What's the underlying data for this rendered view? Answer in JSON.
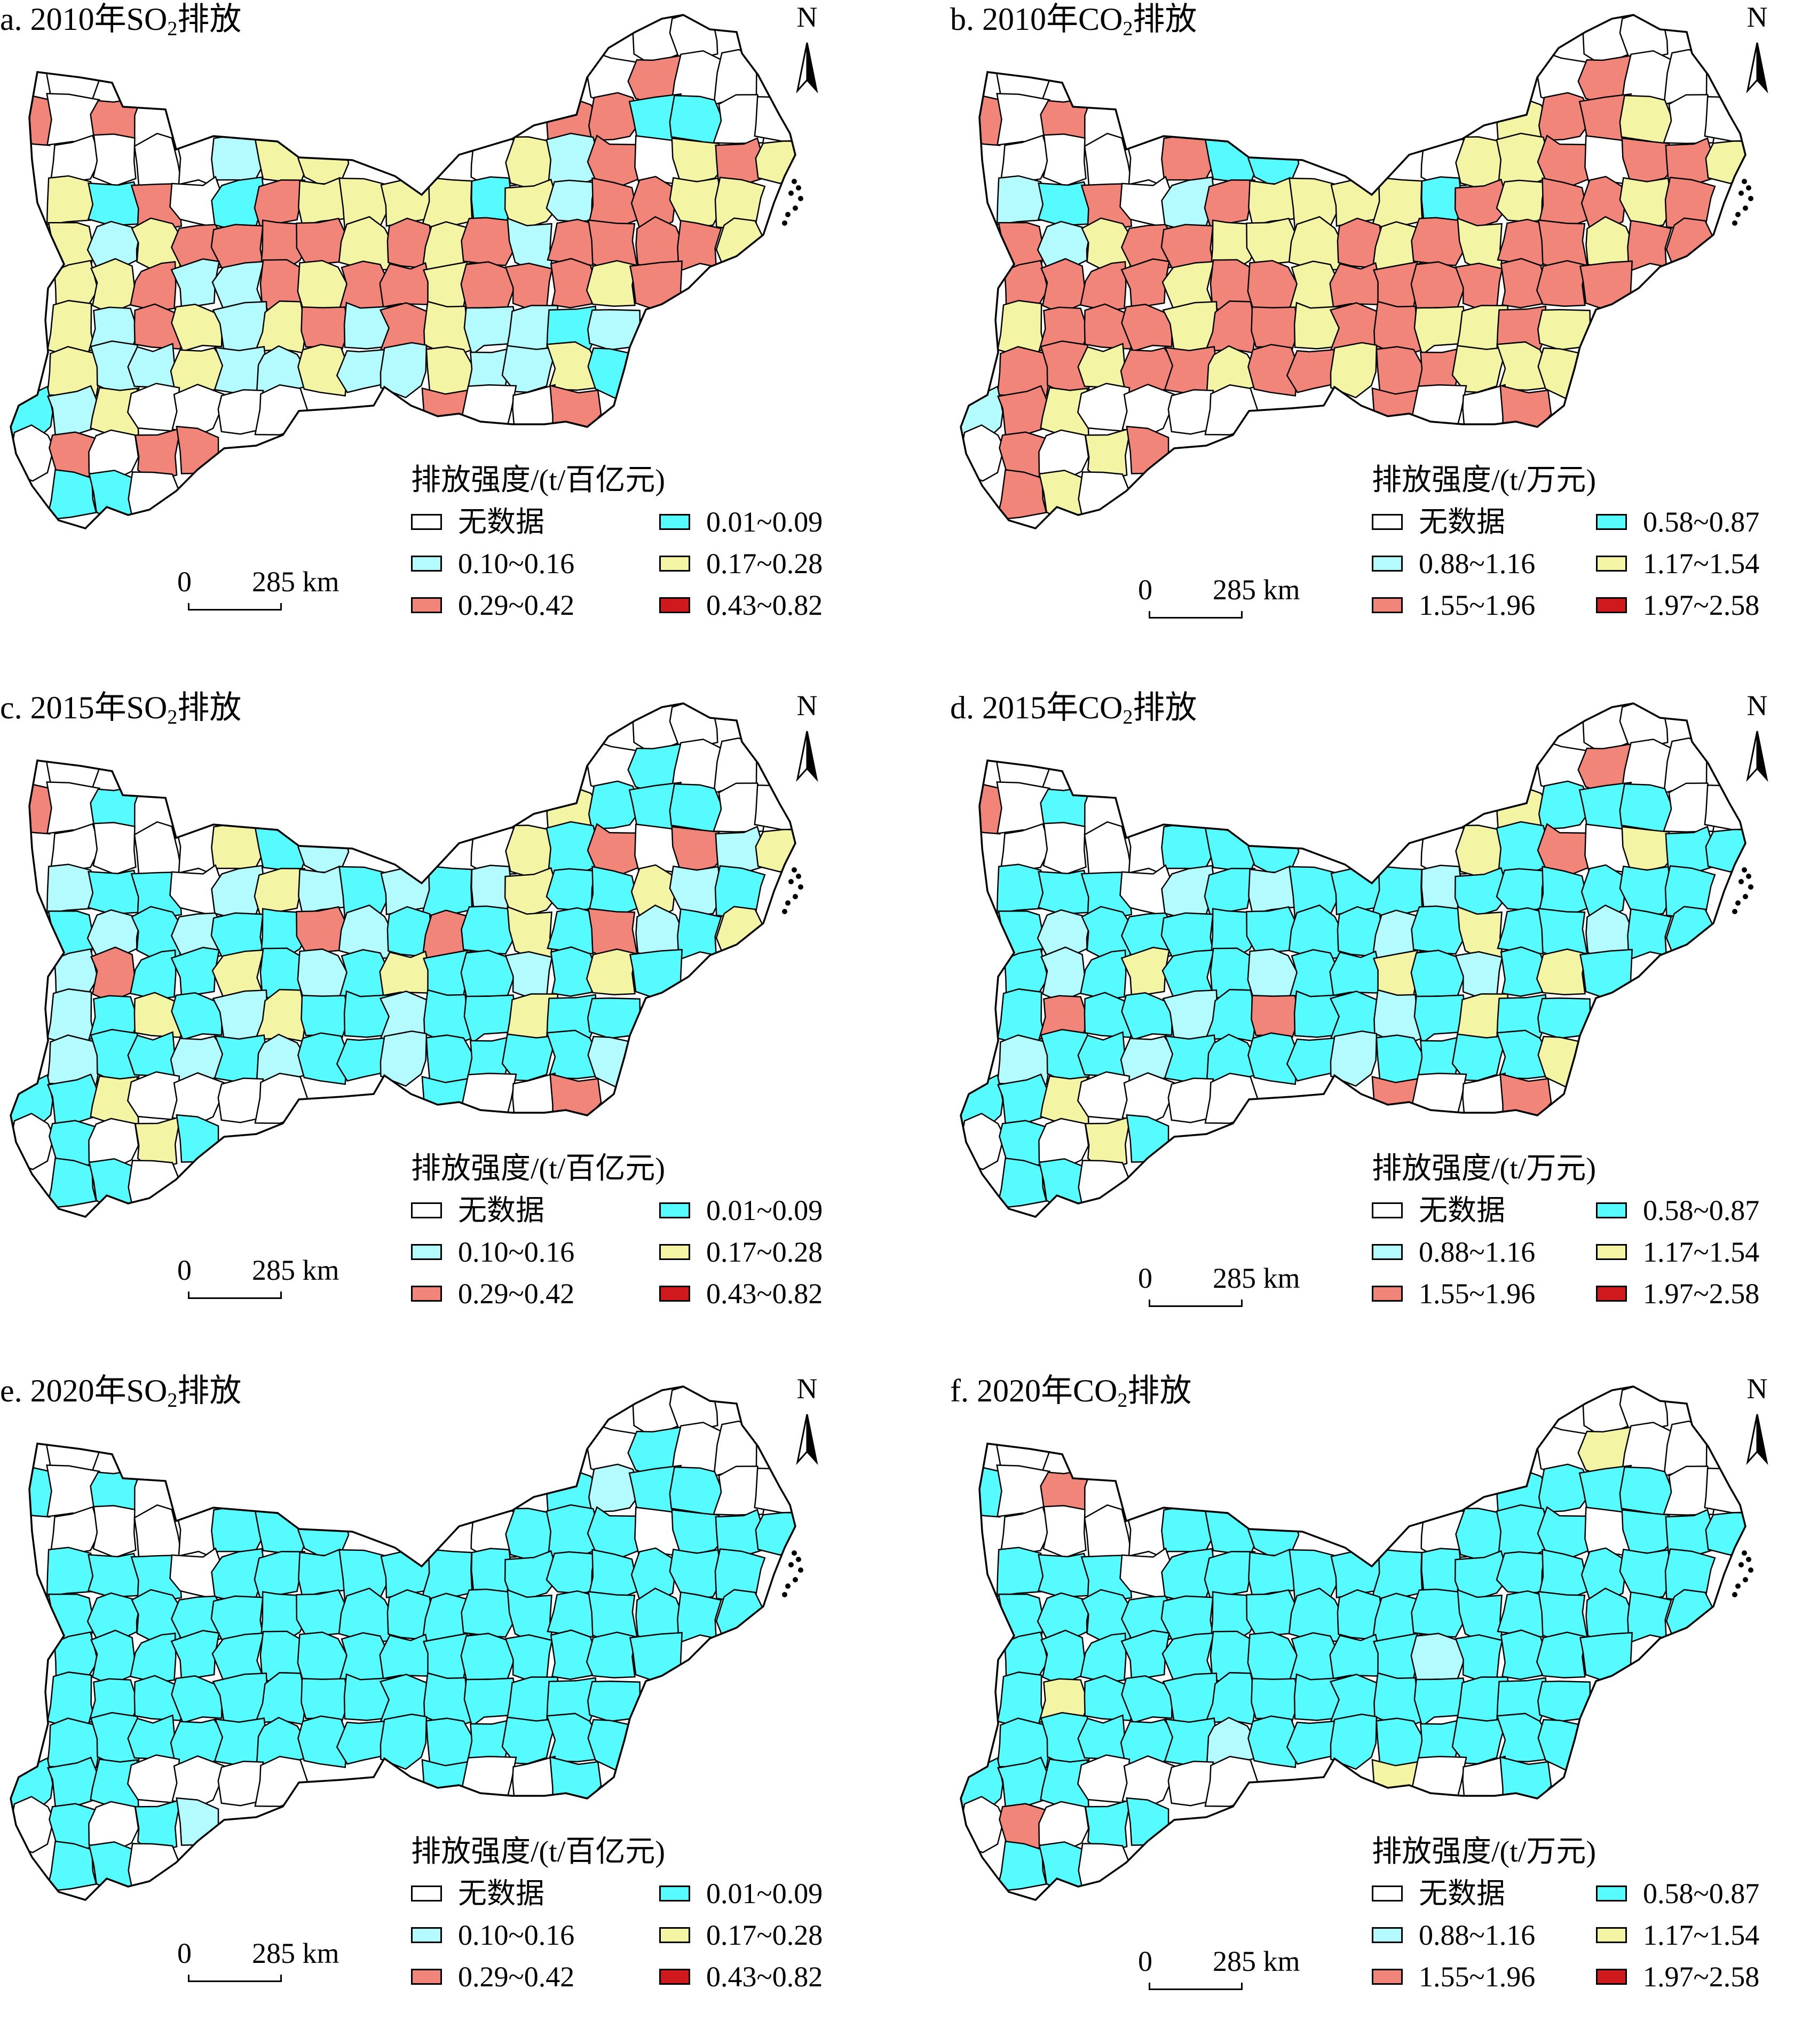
{
  "panels": [
    {
      "id": "a",
      "title_prefix": "a. 2010年",
      "gas": "SO",
      "sub": "2",
      "title_suffix": "排放",
      "type": "so2",
      "regions": [
        0,
        0,
        0,
        0,
        4,
        0,
        0,
        4,
        0,
        4,
        0,
        4,
        4,
        1,
        1,
        0,
        0,
        0,
        0,
        0,
        0,
        2,
        3,
        3,
        0,
        3,
        2,
        4,
        0,
        3,
        4,
        3,
        3,
        1,
        4,
        0,
        1,
        4,
        3,
        3,
        3,
        3,
        1,
        3,
        2,
        4,
        4,
        3,
        3,
        3,
        2,
        3,
        4,
        4,
        4,
        4,
        3,
        4,
        3,
        4,
        2,
        4,
        4,
        4,
        4,
        3,
        3,
        3,
        4,
        2,
        2,
        4,
        3,
        4,
        4,
        3,
        4,
        4,
        4,
        3,
        4,
        3,
        2,
        4,
        3,
        2,
        3,
        4,
        2,
        4,
        3,
        2,
        2,
        1,
        2,
        3,
        2,
        2,
        3,
        2,
        2,
        3,
        2,
        2,
        3,
        2,
        2,
        3,
        1,
        1,
        2,
        3
      ]
    },
    {
      "id": "b",
      "title_prefix": "b. 2010年",
      "gas": "CO",
      "sub": "2",
      "title_suffix": "排放",
      "type": "co2",
      "regions": [
        0,
        0,
        0,
        0,
        4,
        0,
        0,
        4,
        0,
        4,
        0,
        3,
        4,
        4,
        3,
        0,
        0,
        0,
        0,
        0,
        0,
        4,
        1,
        1,
        0,
        3,
        3,
        4,
        0,
        4,
        4,
        3,
        2,
        1,
        4,
        0,
        2,
        4,
        3,
        3,
        3,
        3,
        1,
        4,
        3,
        4,
        4,
        3,
        4,
        4,
        2,
        3,
        4,
        4,
        3,
        3,
        3,
        4,
        3,
        4,
        3,
        4,
        4,
        3,
        4,
        4,
        4,
        4,
        4,
        4,
        3,
        4,
        4,
        3,
        4,
        4,
        4,
        4,
        4,
        4,
        4,
        3,
        4,
        4,
        4,
        3,
        4,
        4,
        3,
        4,
        4,
        3,
        3,
        4,
        3,
        4,
        4,
        3,
        4,
        4,
        3,
        4,
        4,
        3,
        4,
        4,
        3,
        3,
        3,
        2,
        4,
        3
      ]
    },
    {
      "id": "c",
      "title_prefix": "c. 2015年",
      "gas": "SO",
      "sub": "2",
      "title_suffix": "排放",
      "type": "so2",
      "regions": [
        0,
        0,
        0,
        0,
        1,
        0,
        0,
        4,
        0,
        1,
        0,
        3,
        1,
        1,
        1,
        0,
        0,
        0,
        0,
        0,
        0,
        3,
        1,
        2,
        0,
        3,
        1,
        4,
        0,
        4,
        2,
        3,
        2,
        1,
        1,
        0,
        2,
        3,
        2,
        1,
        2,
        1,
        2,
        3,
        1,
        1,
        3,
        2,
        1,
        1,
        2,
        1,
        2,
        1,
        1,
        4,
        2,
        1,
        4,
        1,
        3,
        1,
        4,
        2,
        1,
        3,
        2,
        4,
        1,
        1,
        3,
        1,
        2,
        1,
        3,
        1,
        1,
        2,
        1,
        3,
        1,
        2,
        1,
        3,
        1,
        2,
        3,
        1,
        1,
        2,
        1,
        1,
        3,
        1,
        1,
        2,
        1,
        1,
        2,
        1,
        2,
        1,
        1,
        2,
        1,
        1,
        1,
        1,
        2,
        1,
        1,
        3
      ]
    },
    {
      "id": "d",
      "title_prefix": "d. 2015年",
      "gas": "CO",
      "sub": "2",
      "title_suffix": "排放",
      "type": "co2",
      "regions": [
        0,
        0,
        0,
        0,
        4,
        0,
        0,
        4,
        0,
        1,
        0,
        3,
        1,
        1,
        1,
        0,
        0,
        0,
        0,
        0,
        0,
        1,
        1,
        1,
        0,
        3,
        1,
        4,
        0,
        3,
        1,
        1,
        1,
        1,
        1,
        0,
        2,
        1,
        2,
        1,
        1,
        1,
        2,
        1,
        1,
        1,
        1,
        1,
        1,
        1,
        2,
        1,
        1,
        1,
        1,
        1,
        1,
        1,
        2,
        1,
        3,
        1,
        1,
        2,
        1,
        1,
        1,
        2,
        1,
        3,
        1,
        1,
        2,
        1,
        1,
        3,
        1,
        2,
        1,
        3,
        1,
        1,
        4,
        1,
        1,
        2,
        1,
        4,
        1,
        1,
        2,
        1,
        3,
        1,
        1,
        2,
        1,
        1,
        2,
        1,
        1,
        1,
        1,
        2,
        1,
        1,
        1,
        1,
        3,
        1,
        1,
        3
      ]
    },
    {
      "id": "e",
      "title_prefix": "e. 2020年",
      "gas": "SO",
      "sub": "2",
      "title_suffix": "排放",
      "type": "so2",
      "regions": [
        0,
        0,
        0,
        0,
        1,
        0,
        0,
        1,
        0,
        1,
        0,
        1,
        2,
        1,
        1,
        0,
        0,
        0,
        0,
        0,
        0,
        1,
        1,
        1,
        0,
        1,
        1,
        1,
        0,
        1,
        1,
        1,
        1,
        1,
        1,
        0,
        1,
        1,
        1,
        1,
        1,
        1,
        1,
        1,
        1,
        1,
        1,
        1,
        1,
        1,
        1,
        1,
        1,
        1,
        1,
        1,
        1,
        1,
        1,
        1,
        1,
        1,
        1,
        1,
        1,
        1,
        1,
        1,
        1,
        1,
        1,
        1,
        1,
        1,
        1,
        1,
        1,
        1,
        1,
        1,
        1,
        1,
        1,
        1,
        1,
        1,
        1,
        1,
        1,
        1,
        1,
        1,
        1,
        1,
        1,
        1,
        1,
        1,
        1,
        1,
        1,
        1,
        1,
        1,
        1,
        1,
        1,
        1,
        1,
        1,
        1,
        1
      ]
    },
    {
      "id": "f",
      "title_prefix": "f. 2020年",
      "gas": "CO",
      "sub": "2",
      "title_suffix": "排放",
      "type": "co2",
      "regions": [
        0,
        0,
        0,
        0,
        3,
        0,
        0,
        1,
        0,
        4,
        0,
        1,
        1,
        1,
        1,
        0,
        0,
        0,
        0,
        0,
        0,
        1,
        1,
        1,
        0,
        1,
        1,
        1,
        0,
        1,
        1,
        1,
        1,
        1,
        1,
        0,
        1,
        1,
        1,
        1,
        1,
        1,
        1,
        1,
        1,
        1,
        1,
        1,
        1,
        1,
        1,
        1,
        1,
        1,
        1,
        1,
        1,
        1,
        1,
        1,
        1,
        1,
        1,
        1,
        1,
        1,
        1,
        1,
        1,
        1,
        1,
        1,
        1,
        1,
        1,
        1,
        2,
        1,
        1,
        1,
        1,
        1,
        3,
        1,
        1,
        1,
        1,
        1,
        1,
        1,
        1,
        1,
        1,
        1,
        1,
        1,
        1,
        1,
        1,
        1,
        2,
        1,
        1,
        1,
        1,
        1,
        1,
        1,
        1,
        1,
        1,
        1
      ]
    }
  ],
  "legends": {
    "so2": {
      "title": "排放强度/(t/百亿元)",
      "classes": [
        "无数据",
        "0.01~0.09",
        "0.10~0.16",
        "0.17~0.28",
        "0.29~0.42",
        "0.43~0.82"
      ]
    },
    "co2": {
      "title": "排放强度/(t/万元)",
      "classes": [
        "无数据",
        "0.58~0.87",
        "0.88~1.16",
        "1.17~1.54",
        "1.55~1.96",
        "1.97~2.58"
      ]
    }
  },
  "class_colors": [
    "#ffffff",
    "#55fbff",
    "#b4fbff",
    "#f4f5a4",
    "#f2857a",
    "#d0191d"
  ],
  "north_label": "N",
  "scale": {
    "zero": "0",
    "distance": "285 km"
  }
}
